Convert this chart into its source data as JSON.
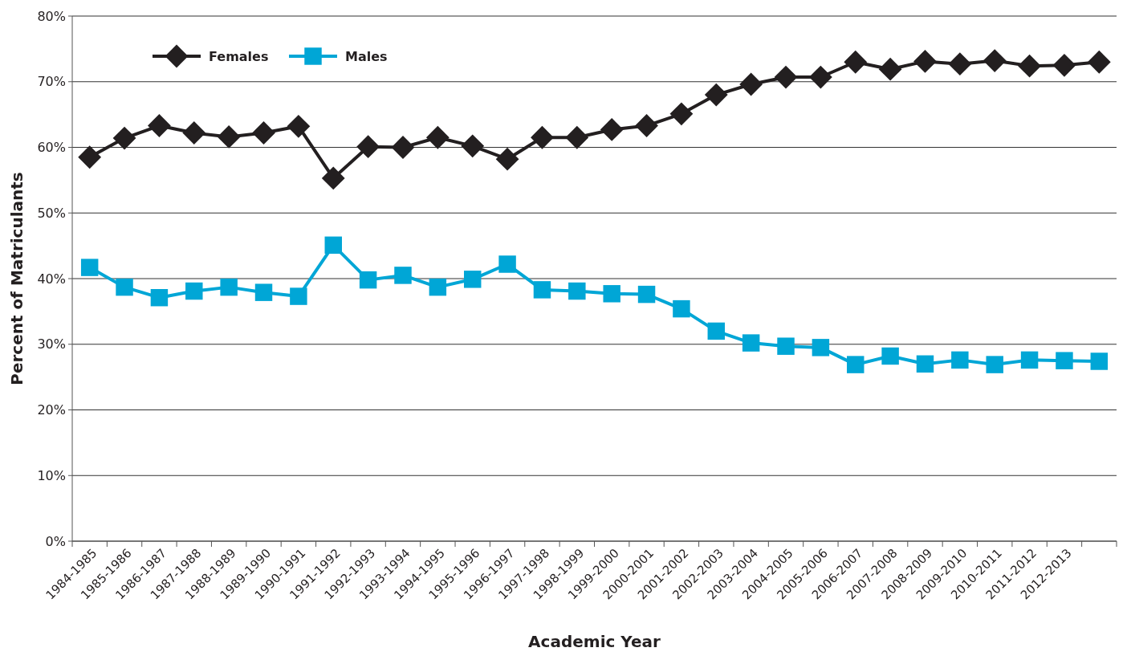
{
  "chart_data": {
    "type": "line",
    "xlabel": "Academic Year",
    "ylabel": "Percent of Matriculants",
    "categories": [
      "1984-1985",
      "1985-1986",
      "1986-1987",
      "1987-1988",
      "1988-1989",
      "1989-1990",
      "1990-1991",
      "1991-1992",
      "1992-1993",
      "1993-1994",
      "1994-1995",
      "1995-1996",
      "1996-1997",
      "1997-1998",
      "1998-1999",
      "1999-2000",
      "2000-2001",
      "2001-2002",
      "2002-2003",
      "2003-2004",
      "2004-2005",
      "2005-2006",
      "2006-2007",
      "2007-2008",
      "2008-2009",
      "2009-2010",
      "2010-2011",
      "2011-2012",
      "2012-2013",
      null
    ],
    "series": [
      {
        "name": "Females",
        "color": "#231f20",
        "marker": "diamond",
        "values": [
          58.5,
          61.4,
          63.3,
          62.2,
          61.6,
          62.2,
          63.2,
          55.3,
          60.1,
          60.0,
          61.5,
          60.2,
          58.2,
          61.5,
          61.5,
          62.7,
          63.3,
          65.1,
          68.0,
          69.6,
          70.7,
          70.7,
          73.0,
          71.9,
          73.1,
          72.7,
          73.2,
          72.4,
          72.5,
          73.0
        ]
      },
      {
        "name": "Males",
        "color": "#00a6d6",
        "marker": "square",
        "values": [
          41.7,
          38.7,
          37.1,
          38.1,
          38.7,
          37.9,
          37.3,
          45.1,
          39.8,
          40.5,
          38.7,
          39.9,
          42.2,
          38.3,
          38.1,
          37.7,
          37.6,
          35.4,
          32.0,
          30.2,
          29.7,
          29.5,
          26.9,
          28.2,
          27.0,
          27.6,
          26.9,
          27.6,
          27.5,
          27.4
        ]
      }
    ],
    "ylim": [
      0,
      80
    ],
    "yticks": [
      {
        "value": 0,
        "label": "0%"
      },
      {
        "value": 10,
        "label": "10%"
      },
      {
        "value": 20,
        "label": "20%"
      },
      {
        "value": 30,
        "label": "30%"
      },
      {
        "value": 40,
        "label": "40%"
      },
      {
        "value": 50,
        "label": "50%"
      },
      {
        "value": 60,
        "label": "60%"
      },
      {
        "value": 70,
        "label": "70%"
      },
      {
        "value": 80,
        "label": "80%"
      }
    ],
    "grid": "y",
    "legend": "top left"
  }
}
